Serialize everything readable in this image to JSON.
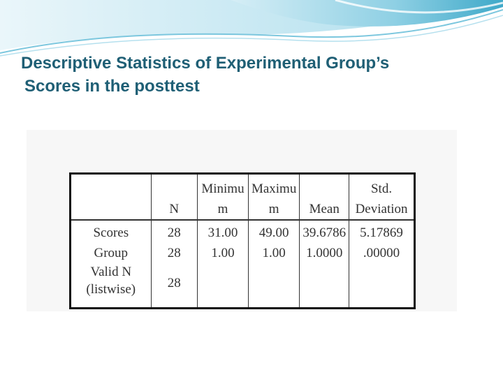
{
  "title": {
    "line1": "Descriptive Statistics of Experimental Group’s",
    "line2": "Scores in the posttest"
  },
  "table": {
    "headers": {
      "n": "N",
      "min_1": "Minimu",
      "min_2": "m",
      "max_1": "Maximu",
      "max_2": "m",
      "mean": "Mean",
      "sd_1": "Std.",
      "sd_2": "Deviation"
    },
    "rows": [
      {
        "label": "Scores",
        "n": "28",
        "min": "31.00",
        "max": "49.00",
        "mean": "39.6786",
        "sd": "5.17869"
      },
      {
        "label": "Group",
        "n": "28",
        "min": "1.00",
        "max": "1.00",
        "mean": "1.0000",
        "sd": ".00000"
      }
    ],
    "valid": {
      "label_1": "Valid N",
      "label_2": "(listwise)",
      "n": "28"
    }
  },
  "colors": {
    "title": "#1f5f75",
    "accent_teal": "#4fb3cf",
    "accent_light": "#bfe6f1"
  }
}
